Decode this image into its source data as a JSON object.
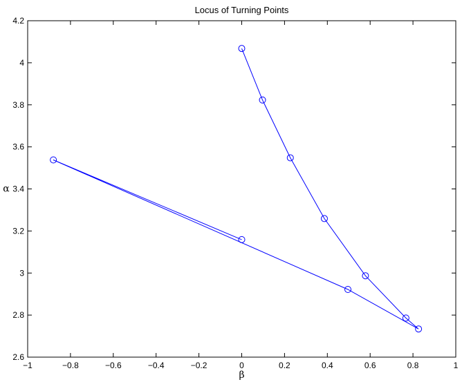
{
  "chart_data": {
    "type": "line",
    "title": "Locus of Turning Points",
    "xlabel": "β",
    "ylabel": "α",
    "xlim": [
      -1,
      1
    ],
    "ylim": [
      2.6,
      4.2
    ],
    "grid": false,
    "legend": "none",
    "x_ticks": [
      "−1",
      "−0.8",
      "−0.6",
      "−0.4",
      "−0.2",
      "0",
      "0.2",
      "0.4",
      "0.6",
      "0.8",
      "1"
    ],
    "y_ticks": [
      "2.6",
      "2.8",
      "3",
      "3.2",
      "3.4",
      "3.6",
      "3.8",
      "4",
      "4.2"
    ],
    "series": [
      {
        "color": "#0000ff",
        "marker": "circle",
        "x": [
          0.0,
          0.097,
          0.227,
          0.386,
          0.578,
          0.767,
          0.826,
          0.496,
          -0.88,
          0.0
        ],
        "y": [
          4.068,
          3.823,
          3.548,
          3.259,
          2.987,
          2.786,
          2.734,
          2.922,
          3.538,
          3.159
        ]
      }
    ]
  }
}
